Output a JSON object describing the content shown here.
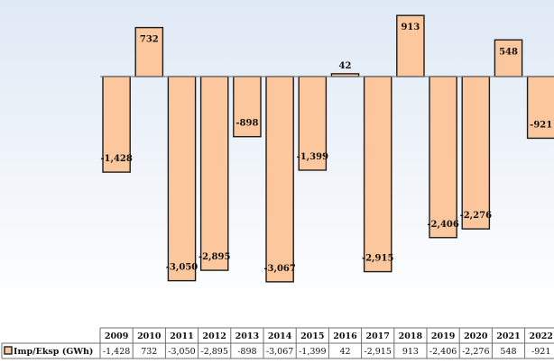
{
  "chart_data": {
    "type": "bar",
    "categories": [
      "2009",
      "2010",
      "2011",
      "2012",
      "2013",
      "2014",
      "2015",
      "2016",
      "2017",
      "2018",
      "2019",
      "2020",
      "2021",
      "2022"
    ],
    "series": [
      {
        "name": "Imp/Eksp (GWh)",
        "values": [
          -1428,
          732,
          -3050,
          -2895,
          -898,
          -3067,
          -1399,
          42,
          -2915,
          913,
          -2406,
          -2276,
          548,
          -921
        ],
        "labels": [
          "-1,428",
          "732",
          "-3,050",
          "-2,895",
          "-898",
          "-3,067",
          "-1,399",
          "42",
          "-2,915",
          "913",
          "-2,406",
          "-2,276",
          "548",
          "-921"
        ]
      }
    ],
    "ylim": [
      -3300,
      1000
    ],
    "grid": false,
    "legend_placement": "data-table",
    "data_table": true,
    "colors": {
      "bar_fill": "#fdc79d",
      "bar_stroke": "#1a1a1a",
      "plot_bg_top": "#dfe9f5",
      "plot_bg_bottom": "#ffffff",
      "zero_line": "#7f7f7f",
      "table_border": "#6f6f6f"
    }
  }
}
